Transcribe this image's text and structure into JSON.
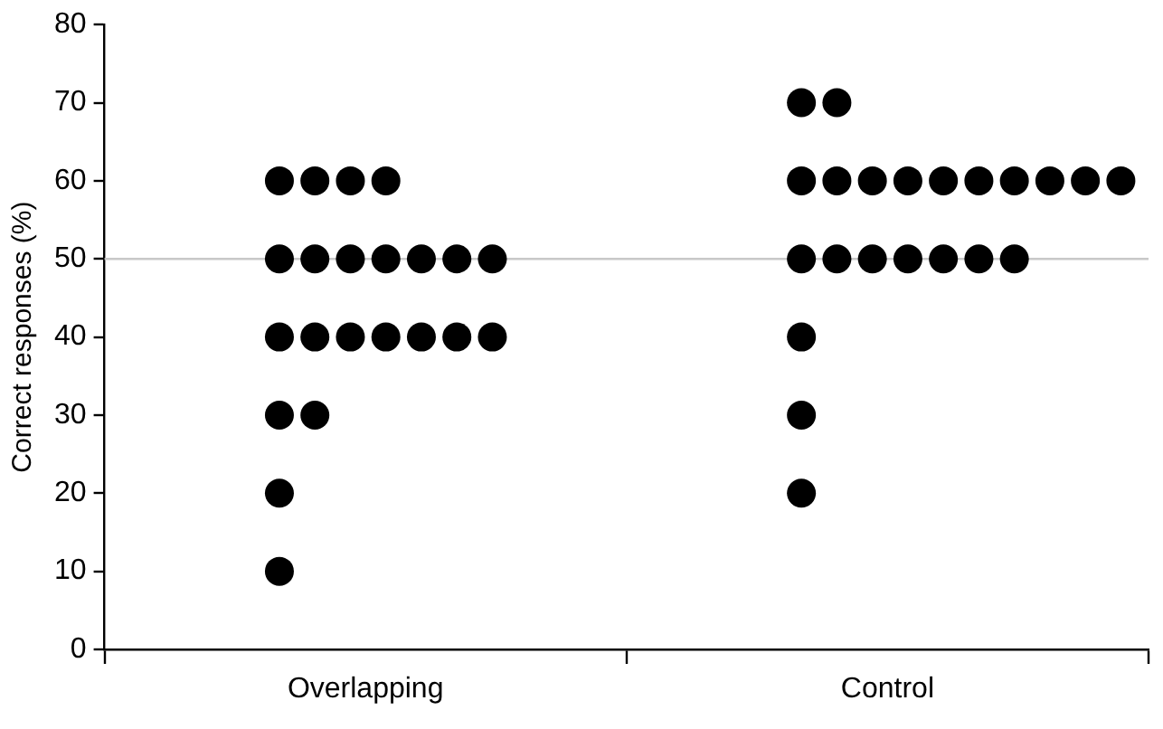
{
  "chart_data": {
    "type": "scatter",
    "ylabel": "Correct responses (%)",
    "categories": [
      "Overlapping",
      "Control"
    ],
    "ylim": [
      0,
      80
    ],
    "yticks": [
      0,
      10,
      20,
      30,
      40,
      50,
      60,
      70,
      80
    ],
    "grid": false,
    "legend": false,
    "marker": "circle",
    "ref_lines": [
      {
        "axis": "y",
        "value": 50,
        "color": "#c8c8c8"
      }
    ],
    "series": [
      {
        "color": "#000000",
        "x": [
          "Overlapping",
          "Overlapping",
          "Overlapping",
          "Overlapping",
          "Overlapping",
          "Overlapping",
          "Overlapping",
          "Overlapping",
          "Overlapping",
          "Overlapping",
          "Overlapping",
          "Overlapping",
          "Overlapping",
          "Overlapping",
          "Overlapping",
          "Overlapping",
          "Overlapping",
          "Overlapping",
          "Overlapping",
          "Overlapping",
          "Overlapping",
          "Overlapping",
          "Control",
          "Control",
          "Control",
          "Control",
          "Control",
          "Control",
          "Control",
          "Control",
          "Control",
          "Control",
          "Control",
          "Control",
          "Control",
          "Control",
          "Control",
          "Control",
          "Control",
          "Control",
          "Control",
          "Control",
          "Control",
          "Control"
        ],
        "values": [
          60,
          60,
          60,
          60,
          50,
          50,
          50,
          50,
          50,
          50,
          50,
          40,
          40,
          40,
          40,
          40,
          40,
          40,
          30,
          30,
          20,
          10,
          70,
          70,
          60,
          60,
          60,
          60,
          60,
          60,
          60,
          60,
          60,
          60,
          50,
          50,
          50,
          50,
          50,
          50,
          50,
          40,
          30,
          20
        ]
      }
    ]
  }
}
